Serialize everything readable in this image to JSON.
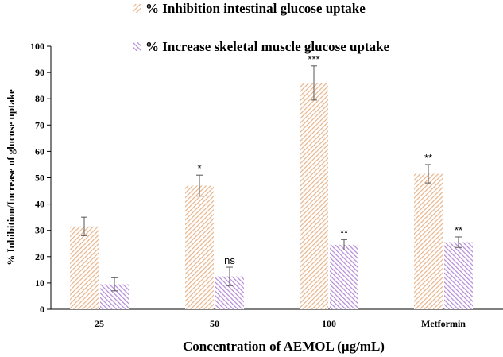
{
  "chart_data": {
    "type": "bar",
    "title": "",
    "xlabel": "Concentration of AEMOL (µg/mL)",
    "ylabel": "% Inhibition/Increase of glucose uptake",
    "ylim": [
      0,
      100
    ],
    "yticks": [
      0,
      10,
      20,
      30,
      40,
      50,
      60,
      70,
      80,
      90,
      100
    ],
    "categories": [
      "25",
      "50",
      "100",
      "Metformin"
    ],
    "grid": false,
    "legend_position": "top",
    "series": [
      {
        "name": "% Inhibition intestinal glucose uptake",
        "values": [
          31.5,
          47,
          86,
          51.5
        ],
        "errors": [
          3.5,
          4,
          6.5,
          3.5
        ],
        "significance": [
          "",
          "*",
          "***",
          "**"
        ],
        "color": "#e8b48a",
        "pattern": "diagonal-hatch"
      },
      {
        "name": "% Increase skeletal muscle glucose uptake",
        "values": [
          9.5,
          12.5,
          24.5,
          25.5
        ],
        "errors": [
          2.5,
          3.5,
          2,
          2
        ],
        "significance": [
          "",
          "ns",
          "**",
          "**"
        ],
        "color": "#b48ad8",
        "pattern": "diagonal-hatch"
      }
    ]
  }
}
